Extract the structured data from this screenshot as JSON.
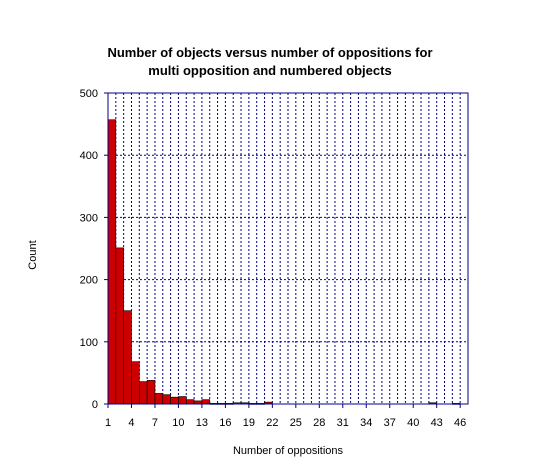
{
  "chart_data": {
    "type": "bar",
    "title_line1": "Number of objects versus number of oppositions for",
    "title_line2": "multi opposition and numbered objects",
    "xlabel": "Number of oppositions",
    "ylabel": "Count",
    "xlim": [
      1,
      47
    ],
    "ylim": [
      0,
      500
    ],
    "xticks": [
      "1",
      "4",
      "7",
      "10",
      "13",
      "16",
      "19",
      "22",
      "25",
      "28",
      "31",
      "34",
      "37",
      "40",
      "43",
      "46"
    ],
    "yticks": [
      "0",
      "100",
      "200",
      "300",
      "400",
      "500"
    ],
    "grid": true,
    "bar_color": "#cc0000",
    "axis_color": "#00008b",
    "x": [
      2,
      3,
      4,
      5,
      6,
      7,
      8,
      9,
      10,
      11,
      12,
      13,
      14,
      15,
      16,
      17,
      18,
      19,
      20,
      21,
      22,
      23,
      24,
      25,
      26,
      27,
      28,
      29,
      30,
      31,
      32,
      33,
      34,
      35,
      36,
      37,
      38,
      39,
      40,
      41,
      42,
      43,
      44,
      45,
      46
    ],
    "values": [
      457,
      251,
      150,
      68,
      36,
      38,
      17,
      15,
      11,
      12,
      7,
      5,
      7,
      1,
      1,
      1,
      2,
      2,
      1,
      1,
      3,
      0,
      0,
      0,
      0,
      0,
      0,
      0,
      0,
      0,
      0,
      0,
      0,
      0,
      0,
      0,
      0,
      0,
      0,
      0,
      0,
      2,
      0,
      0,
      1
    ]
  }
}
